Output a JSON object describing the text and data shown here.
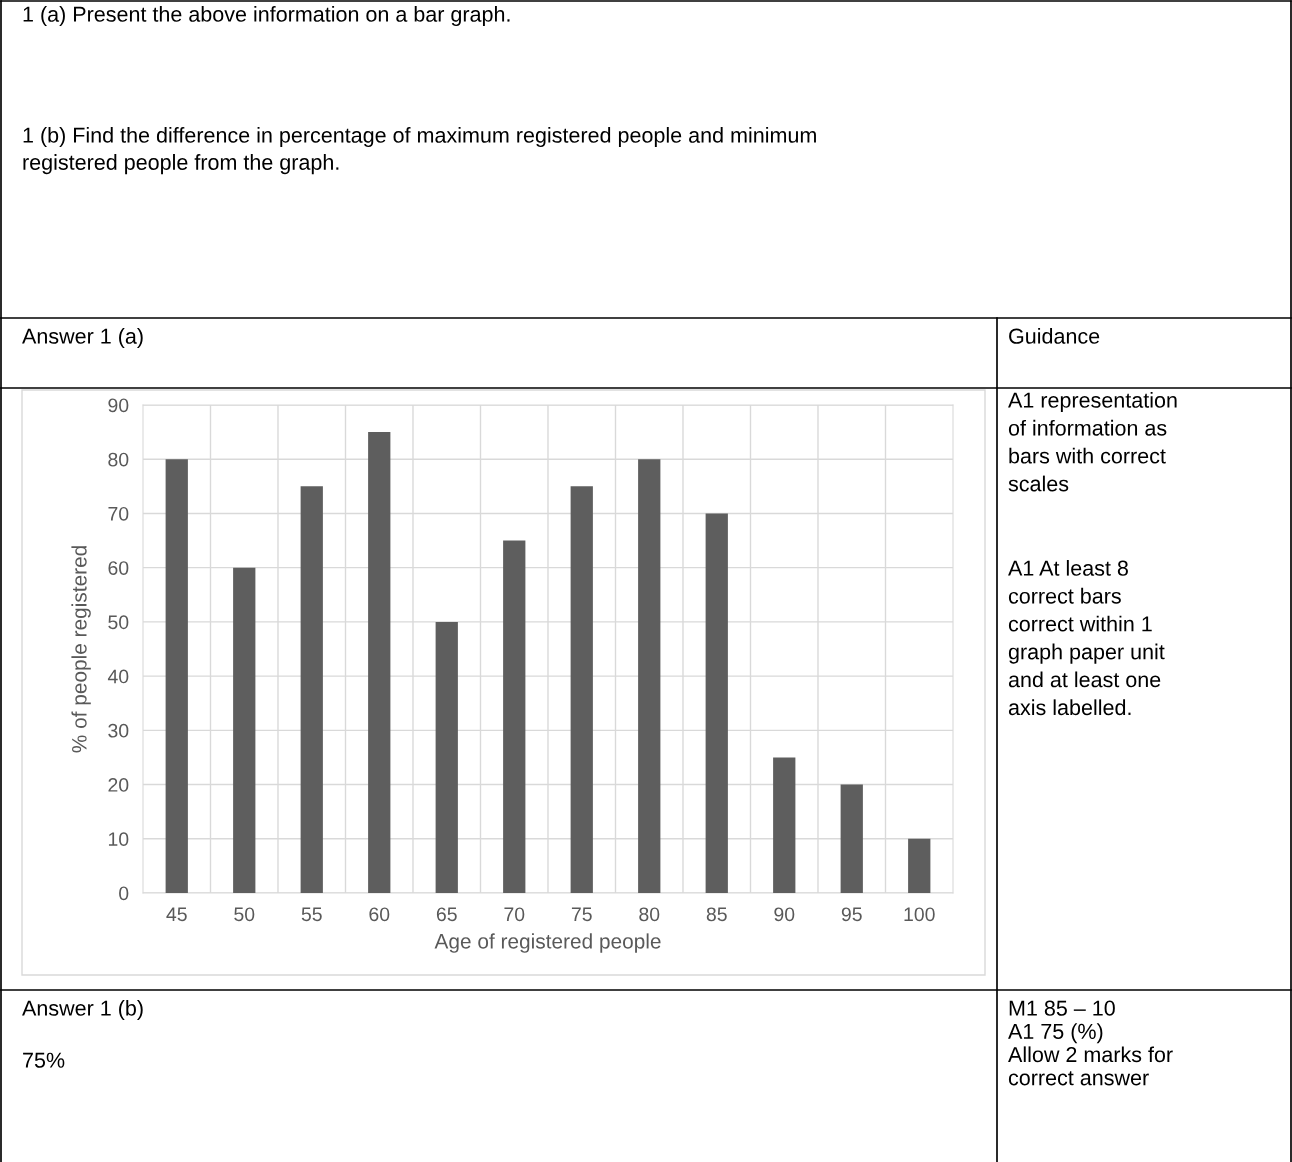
{
  "chart_data": {
    "type": "bar",
    "xlabel": "Age of registered people",
    "ylabel": "% of people registered",
    "categories": [
      "45",
      "50",
      "55",
      "60",
      "65",
      "70",
      "75",
      "80",
      "85",
      "90",
      "95",
      "100"
    ],
    "values": [
      80,
      60,
      75,
      85,
      50,
      65,
      75,
      80,
      70,
      25,
      20,
      10
    ],
    "color": "#5e5e5e",
    "ylim": [
      0,
      90
    ],
    "yticks": [
      0,
      10,
      20,
      30,
      40,
      50,
      60,
      70,
      80,
      90
    ],
    "grid": true,
    "annotations": [
      "1 (a) Present the above information on a bar graph.",
      "1 (b) Find the difference in percentage of maximum registered people and minimum\nregistered people from the graph.",
      "Answer 1 (a)",
      "Guidance",
      "A1 representation\nof information as\nbars with correct\nscales",
      "A1 At least 8\ncorrect bars\ncorrect within 1\ngraph paper unit\nand at least one\naxis labelled.",
      "Answer 1 (b)",
      "75%",
      "M1 85 – 10\nA1 75 (%)\nAllow 2 marks for\ncorrect answer"
    ]
  }
}
